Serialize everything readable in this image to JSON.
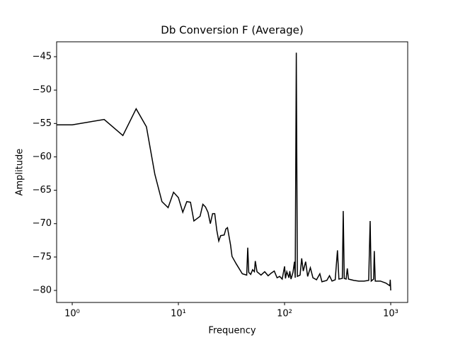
{
  "chart_data": {
    "type": "line",
    "title": "Db Conversion F (Average)",
    "xlabel": "Frequency",
    "ylabel": "Amplitude",
    "xscale": "log",
    "grid": false,
    "x": [
      0.5,
      1,
      2,
      3,
      4,
      5,
      6,
      7,
      8,
      9,
      10,
      11,
      12,
      13,
      14,
      16,
      17,
      18,
      19,
      20,
      21,
      22,
      23,
      24,
      25,
      27,
      28,
      29,
      31,
      32,
      35,
      40,
      44,
      45,
      46,
      48,
      50,
      52,
      53,
      55,
      60,
      65,
      70,
      75,
      80,
      85,
      90,
      95,
      100,
      102,
      105,
      110,
      112,
      115,
      120,
      124,
      126,
      129,
      132,
      140,
      145,
      150,
      158,
      165,
      175,
      185,
      200,
      215,
      225,
      250,
      265,
      280,
      300,
      315,
      325,
      350,
      357,
      365,
      380,
      390,
      400,
      450,
      500,
      560,
      620,
      640,
      655,
      690,
      700,
      715,
      800,
      900,
      980,
      990,
      1000
    ],
    "series": [
      {
        "color": "#000000",
        "values": [
          -55.2,
          -55.2,
          -54.4,
          -56.8,
          -52.8,
          -55.5,
          -62.6,
          -66.7,
          -67.6,
          -65.3,
          -66.1,
          -68.3,
          -66.7,
          -66.8,
          -69.6,
          -68.9,
          -67.1,
          -67.5,
          -68.3,
          -70.0,
          -68.5,
          -68.5,
          -71.0,
          -72.6,
          -71.8,
          -71.7,
          -70.8,
          -70.6,
          -73.2,
          -74.9,
          -76.0,
          -77.5,
          -77.7,
          -73.6,
          -77.3,
          -77.6,
          -76.9,
          -77.2,
          -75.6,
          -77.2,
          -77.7,
          -77.2,
          -77.8,
          -77.4,
          -77.1,
          -78.1,
          -77.9,
          -78.3,
          -76.4,
          -78.2,
          -77.2,
          -78.1,
          -77.1,
          -78.3,
          -77.3,
          -75.7,
          -78.1,
          -44.4,
          -77.9,
          -77.7,
          -75.2,
          -77.1,
          -75.7,
          -77.9,
          -76.6,
          -78.1,
          -78.4,
          -77.5,
          -78.7,
          -78.5,
          -77.8,
          -78.6,
          -78.4,
          -74.0,
          -78.3,
          -78.2,
          -68.1,
          -78.2,
          -78.3,
          -76.7,
          -78.3,
          -78.5,
          -78.6,
          -78.6,
          -78.5,
          -69.6,
          -78.6,
          -78.3,
          -74.1,
          -78.6,
          -78.6,
          -78.9,
          -79.3,
          -78.4,
          -80.0
        ]
      }
    ],
    "xlim": [
      0.713,
      1445
    ],
    "ylim": [
      -81.8,
      -42.77
    ],
    "xticks": [
      {
        "value": 1,
        "label": "10⁰"
      },
      {
        "value": 10,
        "label": "10¹"
      },
      {
        "value": 100,
        "label": "10²"
      },
      {
        "value": 1000,
        "label": "10³"
      }
    ],
    "yticks": [
      {
        "value": -45,
        "label": "−45"
      },
      {
        "value": -50,
        "label": "−50"
      },
      {
        "value": -55,
        "label": "−55"
      },
      {
        "value": -60,
        "label": "−60"
      },
      {
        "value": -65,
        "label": "−65"
      },
      {
        "value": -70,
        "label": "−70"
      },
      {
        "value": -75,
        "label": "−75"
      },
      {
        "value": -80,
        "label": "−80"
      }
    ]
  }
}
